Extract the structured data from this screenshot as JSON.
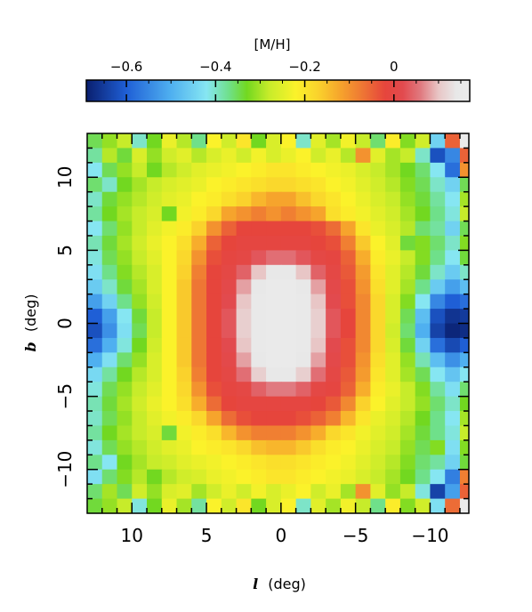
{
  "chart_data": {
    "type": "heatmap",
    "colorbar": {
      "label": "[M/H]",
      "ticks": [
        "−0.6",
        "−0.4",
        "−0.2",
        "0"
      ],
      "tick_values": [
        -0.6,
        -0.4,
        -0.2,
        0
      ],
      "range": [
        -0.69,
        0.17
      ],
      "colormap": [
        {
          "v": -0.69,
          "color": "#0a1f6e"
        },
        {
          "v": -0.6,
          "color": "#1f5fd6"
        },
        {
          "v": -0.5,
          "color": "#4fb0f0"
        },
        {
          "v": -0.42,
          "color": "#86e6f2"
        },
        {
          "v": -0.37,
          "color": "#6fe08a"
        },
        {
          "v": -0.33,
          "color": "#72d820"
        },
        {
          "v": -0.28,
          "color": "#c7ec2a"
        },
        {
          "v": -0.22,
          "color": "#fbf22a"
        },
        {
          "v": -0.17,
          "color": "#fad22c"
        },
        {
          "v": -0.12,
          "color": "#f6a42c"
        },
        {
          "v": -0.07,
          "color": "#ee7634"
        },
        {
          "v": -0.02,
          "color": "#e6453c"
        },
        {
          "v": 0.02,
          "color": "#e24a4e"
        },
        {
          "v": 0.06,
          "color": "#e07a80"
        },
        {
          "v": 0.1,
          "color": "#e8c6c6"
        },
        {
          "v": 0.14,
          "color": "#e8e8e8"
        },
        {
          "v": 0.17,
          "color": "#ebebeb"
        }
      ]
    },
    "xaxis": {
      "label": "l (deg)",
      "label_symbol": "l",
      "label_unit": "(deg)",
      "ticks": [
        10,
        5,
        0,
        -5,
        -10
      ],
      "tick_labels": [
        "10",
        "5",
        "0",
        "−5",
        "−10"
      ],
      "range": [
        13,
        -12.6
      ],
      "reversed": true
    },
    "yaxis": {
      "label": "b (deg)",
      "label_symbol": "b",
      "label_unit": "(deg)",
      "ticks": [
        10,
        5,
        0,
        -5,
        -10
      ],
      "tick_labels": [
        "10",
        "5",
        "0",
        "−5",
        "−10"
      ],
      "range": [
        -13,
        13
      ]
    },
    "grid": {
      "l_centers": [
        12.5,
        11.5,
        10.5,
        9.5,
        8.5,
        7.5,
        6.5,
        5.5,
        4.5,
        3.5,
        2.5,
        1.5,
        0.5,
        -0.5,
        -1.5,
        -2.5,
        -3.5,
        -4.5,
        -5.5,
        -6.5,
        -7.5,
        -8.5,
        -9.5,
        -10.5,
        -11.5,
        -12.5
      ],
      "b_centers": [
        12.5,
        11.5,
        10.5,
        9.5,
        8.5,
        7.5,
        6.5,
        5.5,
        4.5,
        3.5,
        2.5,
        1.5,
        0.5,
        -0.5,
        -1.5,
        -2.5,
        -3.5,
        -4.5,
        -5.5,
        -6.5,
        -7.5,
        -8.5,
        -9.5,
        -10.5,
        -11.5,
        -12.5
      ],
      "cell_size_deg": 1.0
    },
    "values": [
      [
        -0.35,
        -0.31,
        -0.28,
        -0.4,
        -0.33,
        -0.24,
        -0.29,
        -0.37,
        -0.22,
        -0.27,
        -0.2,
        -0.33,
        -0.26,
        -0.22,
        -0.4,
        -0.25,
        -0.3,
        -0.23,
        -0.28,
        -0.36,
        -0.21,
        -0.32,
        -0.27,
        -0.45,
        -0.05,
        0.17
      ],
      [
        -0.38,
        -0.29,
        -0.34,
        -0.26,
        -0.31,
        -0.27,
        -0.25,
        -0.29,
        -0.26,
        -0.24,
        -0.27,
        -0.23,
        -0.26,
        -0.24,
        -0.22,
        -0.27,
        -0.24,
        -0.29,
        -0.1,
        -0.25,
        -0.3,
        -0.28,
        -0.4,
        -0.62,
        -0.55,
        -0.05
      ],
      [
        -0.42,
        -0.35,
        -0.31,
        -0.28,
        -0.33,
        -0.29,
        -0.27,
        -0.25,
        -0.24,
        -0.23,
        -0.22,
        -0.21,
        -0.2,
        -0.2,
        -0.21,
        -0.22,
        -0.23,
        -0.24,
        -0.26,
        -0.28,
        -0.3,
        -0.33,
        -0.36,
        -0.42,
        -0.58,
        -0.1
      ],
      [
        -0.36,
        -0.4,
        -0.33,
        -0.3,
        -0.28,
        -0.26,
        -0.25,
        -0.24,
        -0.22,
        -0.21,
        -0.2,
        -0.19,
        -0.18,
        -0.18,
        -0.19,
        -0.2,
        -0.22,
        -0.23,
        -0.25,
        -0.27,
        -0.29,
        -0.32,
        -0.35,
        -0.4,
        -0.45,
        -0.35
      ],
      [
        -0.4,
        -0.34,
        -0.31,
        -0.29,
        -0.27,
        -0.25,
        -0.24,
        -0.22,
        -0.21,
        -0.19,
        -0.17,
        -0.14,
        -0.12,
        -0.12,
        -0.15,
        -0.18,
        -0.2,
        -0.22,
        -0.24,
        -0.26,
        -0.28,
        -0.31,
        -0.34,
        -0.38,
        -0.42,
        -0.3
      ],
      [
        -0.38,
        -0.33,
        -0.3,
        -0.28,
        -0.26,
        -0.33,
        -0.23,
        -0.21,
        -0.18,
        -0.12,
        -0.1,
        -0.08,
        -0.1,
        -0.08,
        -0.1,
        -0.12,
        -0.19,
        -0.21,
        -0.23,
        -0.25,
        -0.27,
        -0.3,
        -0.33,
        -0.37,
        -0.41,
        -0.28
      ],
      [
        -0.42,
        -0.36,
        -0.31,
        -0.28,
        -0.25,
        -0.23,
        -0.21,
        -0.17,
        -0.1,
        -0.05,
        -0.02,
        -0.02,
        -0.02,
        -0.02,
        -0.02,
        -0.03,
        -0.06,
        -0.12,
        -0.2,
        -0.24,
        -0.26,
        -0.29,
        -0.36,
        -0.38,
        -0.45,
        -0.35
      ],
      [
        -0.39,
        -0.34,
        -0.3,
        -0.27,
        -0.24,
        -0.22,
        -0.19,
        -0.13,
        -0.05,
        -0.02,
        -0.01,
        -0.01,
        -0.01,
        -0.01,
        -0.01,
        -0.02,
        -0.03,
        -0.08,
        -0.16,
        -0.22,
        -0.25,
        -0.34,
        -0.32,
        -0.36,
        -0.4,
        -0.32
      ],
      [
        -0.41,
        -0.35,
        -0.31,
        -0.28,
        -0.25,
        -0.22,
        -0.18,
        -0.1,
        -0.03,
        -0.01,
        0.0,
        0.03,
        0.05,
        0.05,
        0.03,
        0.0,
        -0.01,
        -0.05,
        -0.13,
        -0.21,
        -0.24,
        -0.28,
        -0.32,
        -0.37,
        -0.42,
        -0.34
      ],
      [
        -0.43,
        -0.37,
        -0.32,
        -0.29,
        -0.26,
        -0.22,
        -0.17,
        -0.08,
        -0.02,
        0.0,
        0.04,
        0.1,
        0.14,
        0.14,
        0.1,
        0.04,
        0.0,
        -0.04,
        -0.11,
        -0.2,
        -0.25,
        -0.29,
        -0.34,
        -0.4,
        -0.46,
        -0.4
      ],
      [
        -0.46,
        -0.4,
        -0.34,
        -0.3,
        -0.26,
        -0.22,
        -0.16,
        -0.07,
        -0.02,
        0.01,
        0.08,
        0.14,
        0.16,
        0.16,
        0.14,
        0.08,
        0.01,
        -0.03,
        -0.1,
        -0.19,
        -0.25,
        -0.3,
        -0.37,
        -0.46,
        -0.52,
        -0.48
      ],
      [
        -0.52,
        -0.45,
        -0.37,
        -0.31,
        -0.27,
        -0.22,
        -0.16,
        -0.07,
        -0.02,
        0.02,
        0.1,
        0.15,
        0.16,
        0.16,
        0.15,
        0.1,
        0.02,
        -0.03,
        -0.09,
        -0.18,
        -0.26,
        -0.32,
        -0.42,
        -0.55,
        -0.6,
        -0.58
      ],
      [
        -0.6,
        -0.52,
        -0.42,
        -0.34,
        -0.28,
        -0.22,
        -0.16,
        -0.07,
        -0.02,
        0.03,
        0.11,
        0.15,
        0.16,
        0.16,
        0.15,
        0.11,
        0.03,
        -0.02,
        -0.09,
        -0.18,
        -0.26,
        -0.35,
        -0.48,
        -0.62,
        -0.66,
        -0.65
      ],
      [
        -0.62,
        -0.54,
        -0.43,
        -0.35,
        -0.28,
        -0.22,
        -0.16,
        -0.07,
        -0.02,
        0.03,
        0.11,
        0.15,
        0.16,
        0.16,
        0.15,
        0.11,
        0.03,
        -0.02,
        -0.09,
        -0.18,
        -0.27,
        -0.36,
        -0.5,
        -0.64,
        -0.68,
        -0.67
      ],
      [
        -0.58,
        -0.5,
        -0.41,
        -0.33,
        -0.27,
        -0.22,
        -0.16,
        -0.07,
        -0.02,
        0.02,
        0.1,
        0.15,
        0.16,
        0.16,
        0.15,
        0.1,
        0.02,
        -0.03,
        -0.09,
        -0.18,
        -0.26,
        -0.34,
        -0.45,
        -0.58,
        -0.63,
        -0.6
      ],
      [
        -0.5,
        -0.43,
        -0.36,
        -0.31,
        -0.26,
        -0.22,
        -0.16,
        -0.07,
        -0.02,
        0.01,
        0.08,
        0.14,
        0.16,
        0.16,
        0.14,
        0.08,
        0.01,
        -0.03,
        -0.1,
        -0.19,
        -0.25,
        -0.31,
        -0.39,
        -0.48,
        -0.54,
        -0.5
      ],
      [
        -0.44,
        -0.38,
        -0.33,
        -0.29,
        -0.26,
        -0.22,
        -0.17,
        -0.08,
        -0.02,
        0.0,
        0.05,
        0.11,
        0.14,
        0.14,
        0.11,
        0.05,
        0.0,
        -0.04,
        -0.11,
        -0.2,
        -0.25,
        -0.3,
        -0.35,
        -0.42,
        -0.47,
        -0.42
      ],
      [
        -0.41,
        -0.35,
        -0.31,
        -0.28,
        -0.25,
        -0.22,
        -0.18,
        -0.1,
        -0.03,
        -0.01,
        0.0,
        0.04,
        0.06,
        0.06,
        0.04,
        0.0,
        -0.01,
        -0.05,
        -0.13,
        -0.21,
        -0.24,
        -0.28,
        -0.32,
        -0.38,
        -0.43,
        -0.36
      ],
      [
        -0.39,
        -0.34,
        -0.3,
        -0.27,
        -0.24,
        -0.22,
        -0.19,
        -0.13,
        -0.06,
        -0.02,
        -0.01,
        -0.01,
        -0.01,
        -0.01,
        -0.01,
        -0.02,
        -0.04,
        -0.09,
        -0.17,
        -0.22,
        -0.25,
        -0.28,
        -0.31,
        -0.36,
        -0.4,
        -0.33
      ],
      [
        -0.4,
        -0.35,
        -0.31,
        -0.28,
        -0.25,
        -0.23,
        -0.21,
        -0.18,
        -0.12,
        -0.06,
        -0.03,
        -0.02,
        -0.02,
        -0.02,
        -0.03,
        -0.05,
        -0.08,
        -0.14,
        -0.2,
        -0.24,
        -0.26,
        -0.29,
        -0.33,
        -0.37,
        -0.42,
        -0.3
      ],
      [
        -0.38,
        -0.33,
        -0.3,
        -0.28,
        -0.26,
        -0.34,
        -0.23,
        -0.21,
        -0.19,
        -0.14,
        -0.1,
        -0.08,
        -0.08,
        -0.08,
        -0.1,
        -0.13,
        -0.18,
        -0.2,
        -0.23,
        -0.25,
        -0.27,
        -0.3,
        -0.34,
        -0.37,
        -0.41,
        -0.28
      ],
      [
        -0.41,
        -0.35,
        -0.31,
        -0.29,
        -0.27,
        -0.25,
        -0.24,
        -0.22,
        -0.21,
        -0.2,
        -0.18,
        -0.15,
        -0.14,
        -0.14,
        -0.16,
        -0.19,
        -0.21,
        -0.22,
        -0.24,
        -0.26,
        -0.28,
        -0.31,
        -0.35,
        -0.32,
        -0.43,
        -0.32
      ],
      [
        -0.37,
        -0.42,
        -0.33,
        -0.3,
        -0.28,
        -0.27,
        -0.25,
        -0.24,
        -0.23,
        -0.22,
        -0.21,
        -0.2,
        -0.19,
        -0.19,
        -0.2,
        -0.21,
        -0.22,
        -0.23,
        -0.25,
        -0.27,
        -0.29,
        -0.32,
        -0.36,
        -0.38,
        -0.45,
        -0.34
      ],
      [
        -0.43,
        -0.36,
        -0.32,
        -0.29,
        -0.33,
        -0.29,
        -0.27,
        -0.26,
        -0.24,
        -0.23,
        -0.22,
        -0.21,
        -0.2,
        -0.2,
        -0.21,
        -0.22,
        -0.23,
        -0.24,
        -0.26,
        -0.28,
        -0.3,
        -0.33,
        -0.37,
        -0.42,
        -0.56,
        -0.08
      ],
      [
        -0.36,
        -0.3,
        -0.35,
        -0.27,
        -0.31,
        -0.26,
        -0.25,
        -0.3,
        -0.27,
        -0.24,
        -0.27,
        -0.23,
        -0.26,
        -0.24,
        -0.22,
        -0.27,
        -0.24,
        -0.3,
        -0.1,
        -0.25,
        -0.31,
        -0.28,
        -0.41,
        -0.64,
        -0.52,
        -0.05
      ],
      [
        -0.34,
        -0.31,
        -0.28,
        -0.41,
        -0.33,
        -0.24,
        -0.3,
        -0.38,
        -0.22,
        -0.27,
        -0.2,
        -0.33,
        -0.26,
        -0.22,
        -0.4,
        -0.25,
        -0.3,
        -0.23,
        -0.28,
        -0.37,
        -0.21,
        -0.32,
        -0.27,
        -0.43,
        -0.06,
        0.17
      ]
    ]
  }
}
